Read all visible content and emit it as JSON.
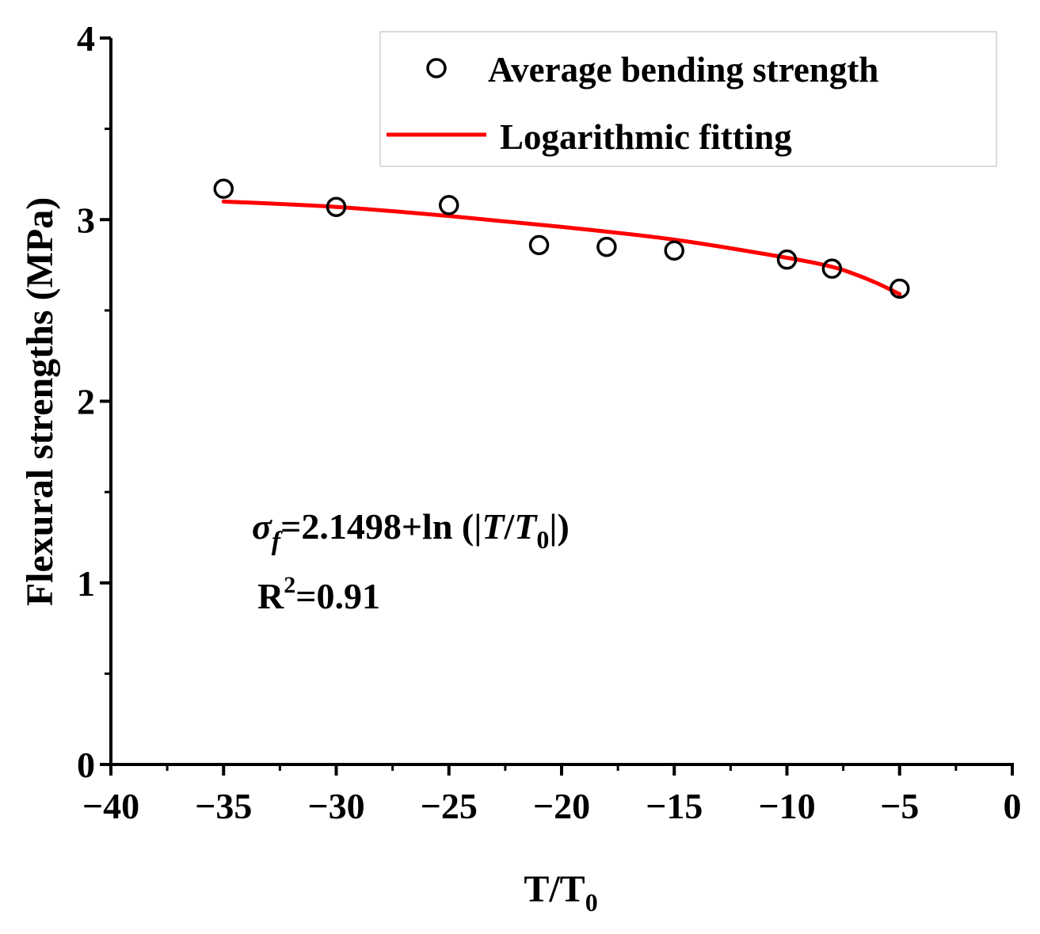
{
  "chart_data": {
    "type": "scatter",
    "title": "",
    "xlabel": {
      "main": "T/T",
      "sub": "0"
    },
    "ylabel": "Flexural strengths (MPa)",
    "xlim": [
      -40,
      0
    ],
    "ylim": [
      0,
      4
    ],
    "x_ticks": [
      {
        "value": -40,
        "label": "−40"
      },
      {
        "value": -35,
        "label": "−35"
      },
      {
        "value": -30,
        "label": "−30"
      },
      {
        "value": -25,
        "label": "−25"
      },
      {
        "value": -20,
        "label": "−20"
      },
      {
        "value": -15,
        "label": "−15"
      },
      {
        "value": -10,
        "label": "−10"
      },
      {
        "value": -5,
        "label": "−5"
      },
      {
        "value": 0,
        "label": "0"
      }
    ],
    "y_ticks": [
      {
        "value": 0,
        "label": "0"
      },
      {
        "value": 1,
        "label": "1"
      },
      {
        "value": 2,
        "label": "2"
      },
      {
        "value": 3,
        "label": "3"
      },
      {
        "value": 4,
        "label": "4"
      }
    ],
    "series": [
      {
        "name": "Average bending strength",
        "kind": "scatter",
        "marker": "open-circle",
        "color": "#000000",
        "x": [
          -35,
          -30,
          -25,
          -21,
          -18,
          -15,
          -10,
          -8,
          -5
        ],
        "y": [
          3.17,
          3.07,
          3.08,
          2.86,
          2.85,
          2.83,
          2.78,
          2.73,
          2.62
        ]
      },
      {
        "name": "Logarithmic fitting",
        "kind": "line",
        "color": "#ff0000",
        "x": [
          -35,
          -30,
          -25,
          -20,
          -15,
          -10,
          -8,
          -7,
          -6,
          -5
        ],
        "y": [
          3.1,
          3.07,
          3.02,
          2.96,
          2.89,
          2.79,
          2.74,
          2.7,
          2.65,
          2.59
        ]
      }
    ],
    "legend": {
      "position": "top-right",
      "entries": [
        "Average bending strength",
        "Logarithmic fitting"
      ]
    },
    "annotations": {
      "equation": {
        "sigma": "σ",
        "f": "f",
        "eq_rest": "=2.1498+ln (|",
        "T": "T",
        "slash": "/",
        "T0": "T",
        "zero": "0",
        "close": "|)"
      },
      "r2": {
        "R": "R",
        "two": "2",
        "rest": "=0.91"
      }
    }
  }
}
